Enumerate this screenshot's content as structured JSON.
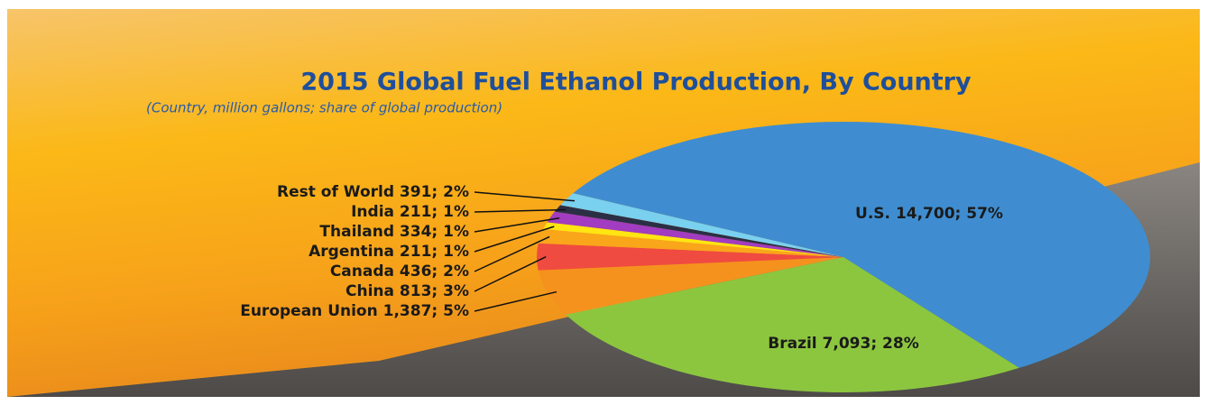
{
  "chart_data": {
    "type": "pie",
    "title": "2015 Global Fuel Ethanol Production, By Country",
    "subtitle": "(Country, million gallons; share of global production)",
    "categories": [
      "U.S.",
      "Brazil",
      "European Union",
      "China",
      "Canada",
      "Argentina",
      "Thailand",
      "India",
      "Rest of World"
    ],
    "values": [
      14700,
      7093,
      1387,
      813,
      436,
      211,
      334,
      211,
      391
    ],
    "value_labels": [
      "14,700; 57%",
      "7,093; 28%",
      "1,387; 5%",
      "813; 3%",
      "436; 2%",
      "211; 1%",
      "334; 1%",
      "211; 1%",
      "391; 2%"
    ],
    "colors": [
      "#3f8dd0",
      "#8cc63f",
      "#f5921e",
      "#f04b40",
      "#f9a61a",
      "#ffe512",
      "#a23cc0",
      "#2b2f45",
      "#79d0ef"
    ]
  }
}
